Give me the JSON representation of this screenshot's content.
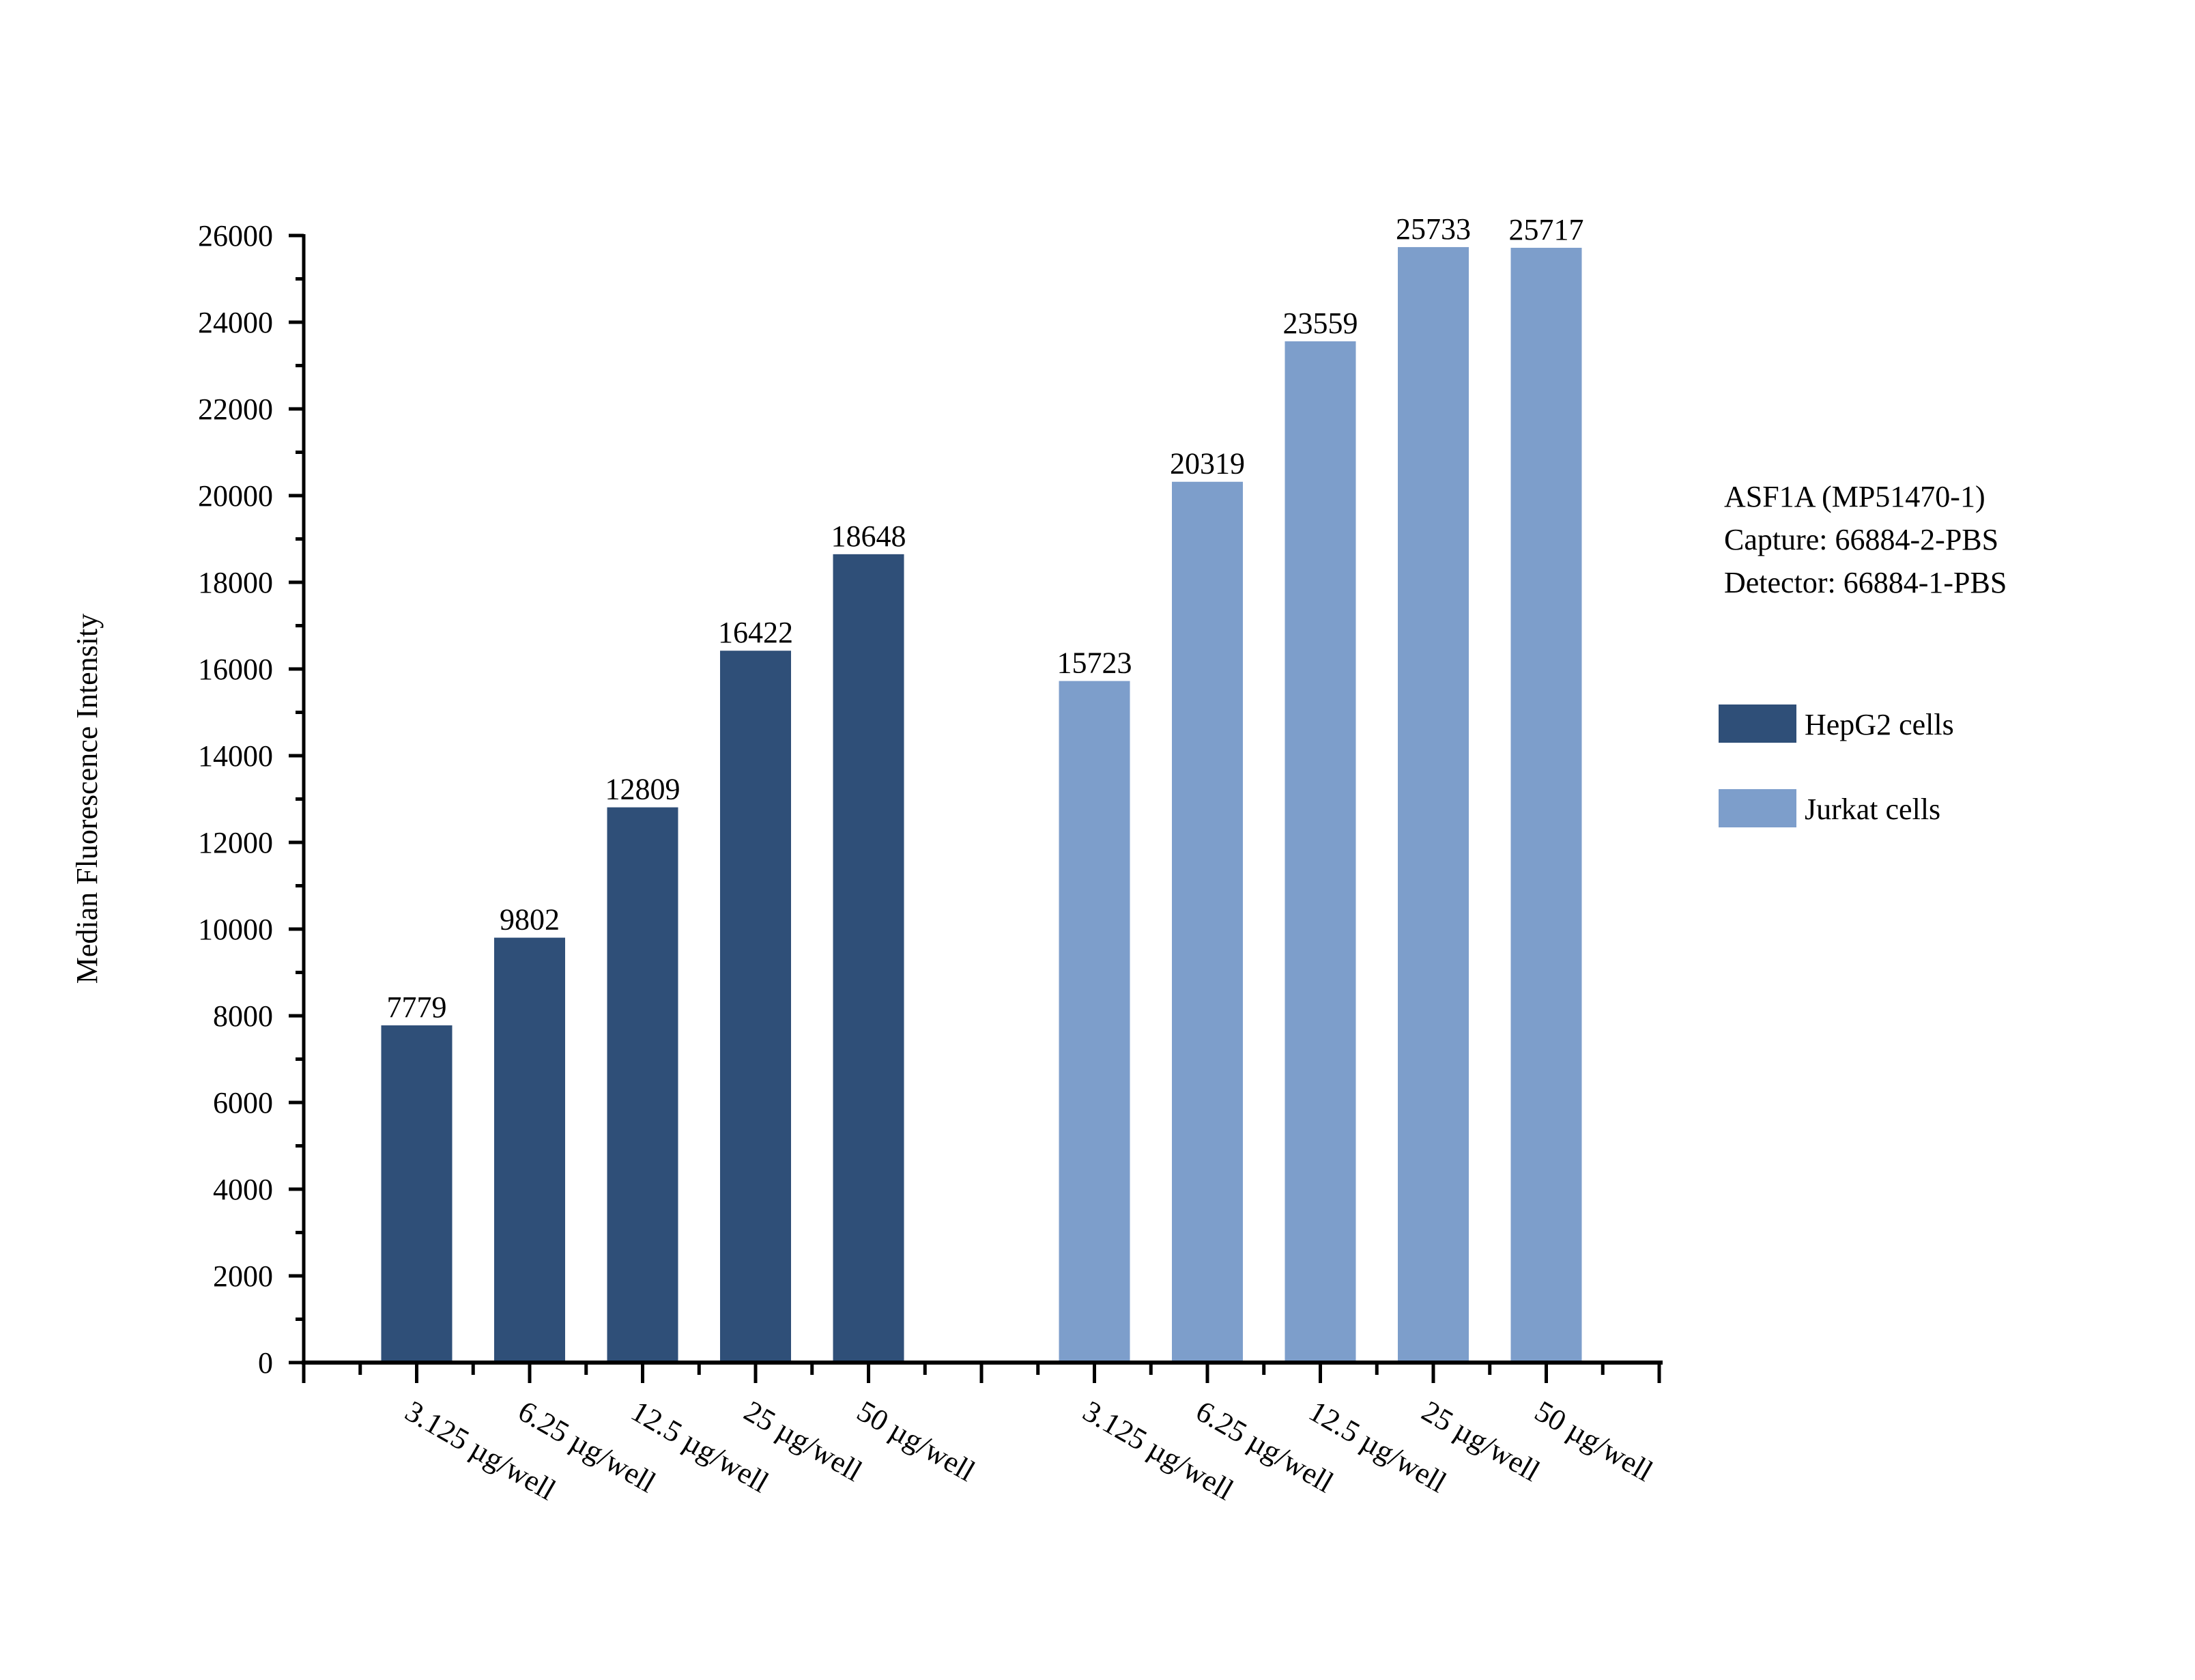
{
  "chart_data": {
    "type": "bar",
    "title": "",
    "ylabel": "Median Fluorescence Intensity",
    "xlabel": "",
    "ylim": [
      0,
      26000
    ],
    "yticks": [
      "0",
      "2000",
      "4000",
      "6000",
      "8000",
      "10000",
      "12000",
      "14000",
      "16000",
      "18000",
      "20000",
      "22000",
      "24000",
      "26000"
    ],
    "categories": [
      "3.125 µg/well",
      "6.25 µg/well",
      "12.5 µg/well",
      "25 µg/well",
      "50 µg/well"
    ],
    "series": [
      {
        "name": "HepG2 cells",
        "color": "#2f4f78",
        "values": [
          7779,
          9802,
          12809,
          16422,
          18648
        ]
      },
      {
        "name": "Jurkat cells",
        "color": "#7d9ecb",
        "values": [
          15723,
          20319,
          23559,
          25733,
          25717
        ]
      }
    ],
    "annotation": [
      "ASF1A (MP51470-1)",
      "Capture: 66884-2-PBS",
      "Detector: 66884-1-PBS"
    ],
    "legend_placement": "right",
    "grid": false
  }
}
